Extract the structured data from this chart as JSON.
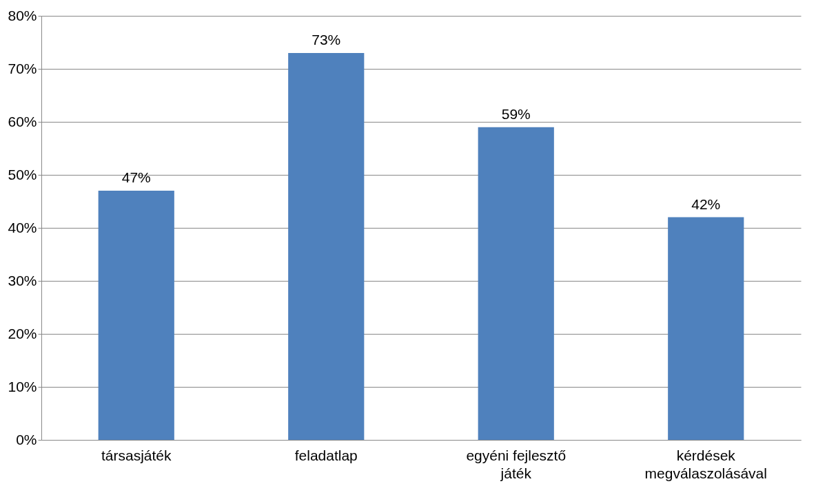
{
  "chart_data": {
    "type": "bar",
    "categories": [
      "társasjáték",
      "feladatlap",
      "egyéni fejlesztő játék",
      "kérdések megválaszolásával"
    ],
    "values": [
      47,
      73,
      59,
      42
    ],
    "value_labels": [
      "47%",
      "73%",
      "59%",
      "42%"
    ],
    "color": "#4f81bd",
    "ylim": [
      0,
      80
    ],
    "yticks": [
      {
        "value": 0,
        "label": "0%"
      },
      {
        "value": 10,
        "label": "10%"
      },
      {
        "value": 20,
        "label": "20%"
      },
      {
        "value": 30,
        "label": "30%"
      },
      {
        "value": 40,
        "label": "40%"
      },
      {
        "value": 50,
        "label": "50%"
      },
      {
        "value": 60,
        "label": "60%"
      },
      {
        "value": 70,
        "label": "70%"
      },
      {
        "value": 80,
        "label": "80%"
      }
    ],
    "grid": "y"
  }
}
